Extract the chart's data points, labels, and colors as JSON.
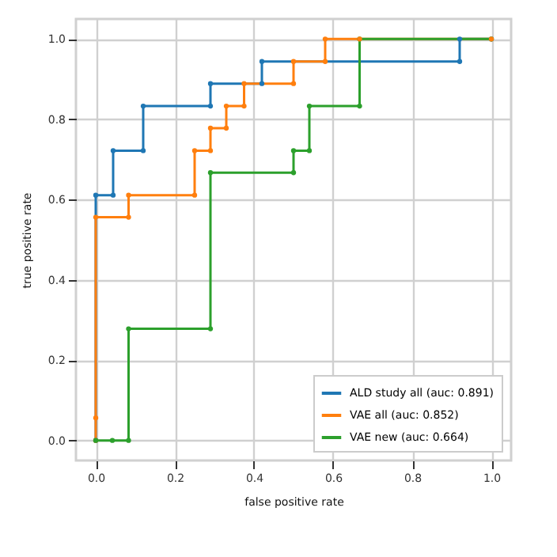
{
  "chart_data": {
    "type": "line",
    "xlabel": "false positive rate",
    "ylabel": "true positive rate",
    "xlim": [
      -0.05,
      1.05
    ],
    "ylim": [
      -0.05,
      1.05
    ],
    "xticks": [
      {
        "value": 0,
        "label": "0.0"
      },
      0.2,
      0.4,
      0.6,
      0.8,
      {
        "value": 1,
        "label": "1.0"
      }
    ],
    "yticks": [
      {
        "value": 0,
        "label": "0.0"
      },
      0.2,
      0.4,
      0.6,
      0.8,
      {
        "value": 1,
        "label": "1.0"
      }
    ],
    "grid": true,
    "legend": "bottom right",
    "marker": "circle",
    "line_style": "solid",
    "series": [
      {
        "name": "ALD study all (auc: 0.891)",
        "color": "#1f77b4",
        "x": [
          0,
          0,
          0.044,
          0.044,
          0.12,
          0.12,
          0.29,
          0.29,
          0.42,
          0.42,
          0.92,
          0.92,
          1
        ],
        "values": [
          0,
          0.611,
          0.611,
          0.722,
          0.722,
          0.833,
          0.833,
          0.889,
          0.889,
          0.944,
          0.944,
          1,
          1
        ]
      },
      {
        "name": "VAE all (auc: 0.852)",
        "color": "#ff7f0e",
        "x": [
          0,
          0,
          0,
          0.083,
          0.083,
          0.25,
          0.25,
          0.29,
          0.29,
          0.33,
          0.33,
          0.375,
          0.375,
          0.5,
          0.5,
          0.58,
          0.58,
          0.667,
          1
        ],
        "values": [
          0,
          0.056,
          0.556,
          0.556,
          0.611,
          0.611,
          0.722,
          0.722,
          0.778,
          0.778,
          0.833,
          0.833,
          0.889,
          0.889,
          0.944,
          0.944,
          1,
          1,
          1
        ]
      },
      {
        "name": "VAE new (auc: 0.664)",
        "color": "#2ca02c",
        "x": [
          0,
          0.042,
          0.083,
          0.083,
          0.29,
          0.29,
          0.5,
          0.5,
          0.54,
          0.54,
          0.667,
          0.667,
          1
        ],
        "values": [
          0,
          0,
          0,
          0.278,
          0.278,
          0.667,
          0.667,
          0.722,
          0.722,
          0.833,
          0.833,
          1,
          1
        ]
      }
    ]
  }
}
